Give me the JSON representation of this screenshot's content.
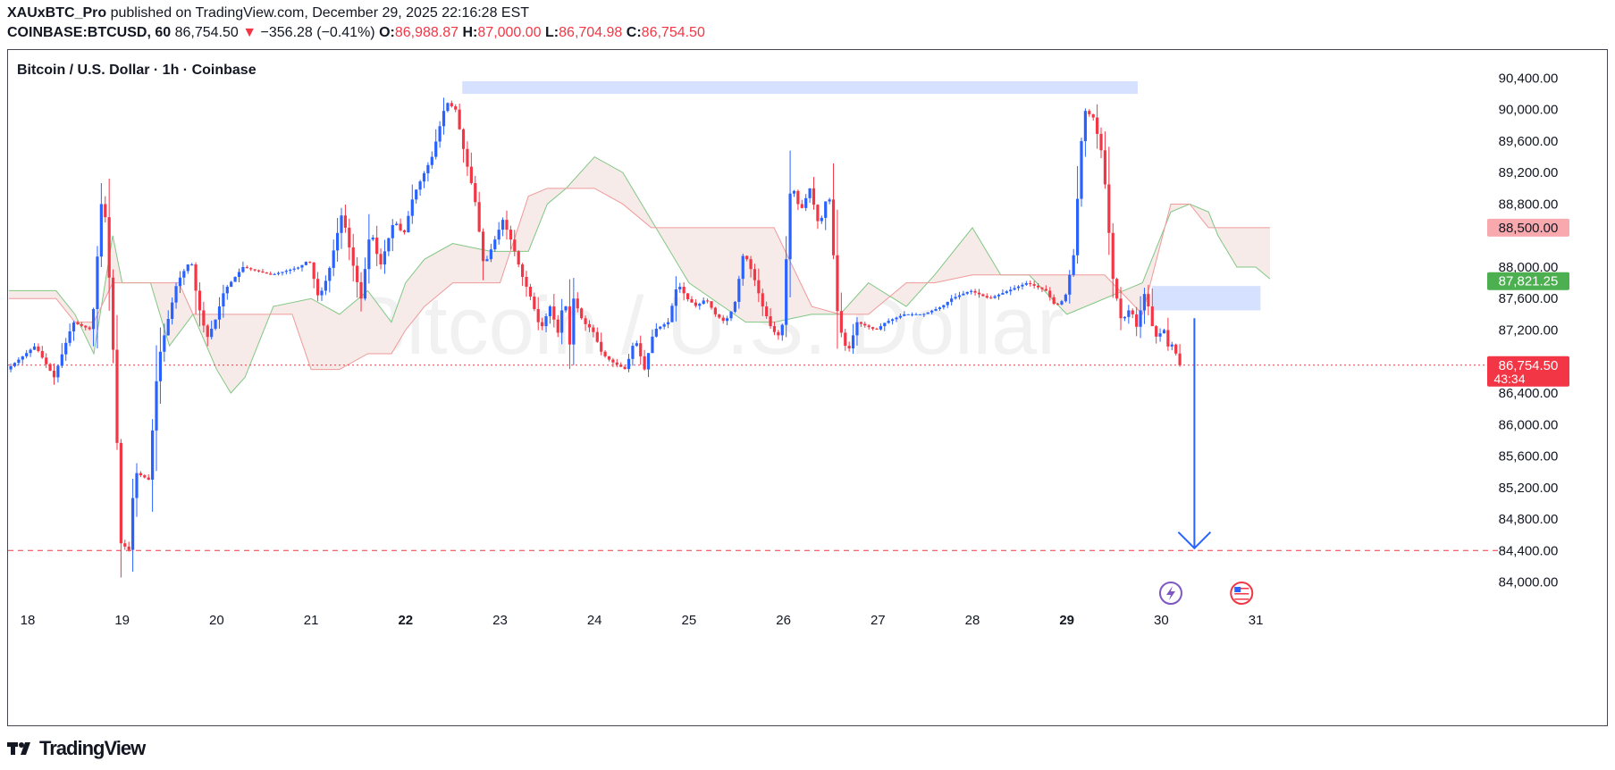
{
  "header": {
    "publisher": "XAUxBTC_Pro",
    "published_text": "published on TradingView.com, December 29, 2025 22:16:28 EST",
    "symbol": "COINBASE:BTCUSD, 60",
    "last": "86,754.50",
    "change_arrow": "▼",
    "change": "−356.28 (−0.41%)",
    "o_label": "O:",
    "o": "86,988.87",
    "h_label": "H:",
    "h": "87,000.00",
    "l_label": "L:",
    "l": "86,704.98",
    "c_label": "C:",
    "c": "86,754.50"
  },
  "chart_title": "Bitcoin / U.S. Dollar · 1h · Coinbase",
  "watermark": "Bitcoin / U.S. Dollar",
  "footer": {
    "brand": "TradingView",
    "logo_icon": "tradingview-logo-icon"
  },
  "colors": {
    "up": "#2962ff",
    "down": "#f23645",
    "cloud_green": "#4caf50",
    "cloud_red": "#f23645",
    "zone": "#cfdcff",
    "arrow": "#2962ff"
  },
  "chart_data": {
    "type": "candlestick",
    "title": "Bitcoin / U.S. Dollar · 1h · Coinbase",
    "xlabel": "",
    "ylabel": "",
    "ylim": [
      83700,
      90700
    ],
    "grid": false,
    "x_ticks": [
      {
        "label": "18",
        "day": 0,
        "bold": false
      },
      {
        "label": "19",
        "day": 1,
        "bold": false
      },
      {
        "label": "20",
        "day": 2,
        "bold": false
      },
      {
        "label": "21",
        "day": 3,
        "bold": false
      },
      {
        "label": "22",
        "day": 4,
        "bold": true
      },
      {
        "label": "23",
        "day": 5,
        "bold": false
      },
      {
        "label": "24",
        "day": 6,
        "bold": false
      },
      {
        "label": "25",
        "day": 7,
        "bold": false
      },
      {
        "label": "26",
        "day": 8,
        "bold": false
      },
      {
        "label": "27",
        "day": 9,
        "bold": false
      },
      {
        "label": "28",
        "day": 10,
        "bold": false
      },
      {
        "label": "29",
        "day": 11,
        "bold": true
      },
      {
        "label": "30",
        "day": 12,
        "bold": false
      },
      {
        "label": "31",
        "day": 13,
        "bold": false
      }
    ],
    "y_ticks": [
      {
        "value": 90400,
        "label": "90,400.00"
      },
      {
        "value": 90000,
        "label": "90,000.00"
      },
      {
        "value": 89600,
        "label": "89,600.00"
      },
      {
        "value": 89200,
        "label": "89,200.00"
      },
      {
        "value": 88800,
        "label": "88,800.00"
      },
      {
        "value": 88000,
        "label": "88,000.00"
      },
      {
        "value": 87600,
        "label": "87,600.00"
      },
      {
        "value": 87200,
        "label": "87,200.00"
      },
      {
        "value": 86400,
        "label": "86,400.00"
      },
      {
        "value": 86000,
        "label": "86,000.00"
      },
      {
        "value": 85600,
        "label": "85,600.00"
      },
      {
        "value": 85200,
        "label": "85,200.00"
      },
      {
        "value": 84800,
        "label": "84,800.00"
      },
      {
        "value": 84400,
        "label": "84,400.00"
      },
      {
        "value": 84000,
        "label": "84,000.00"
      }
    ],
    "price_tags": [
      {
        "value": 88500,
        "label": "88,500.00",
        "bg": "#f8a9ae",
        "fg": "#131722"
      },
      {
        "value": 87821.25,
        "label": "87,821.25",
        "bg": "#4caf50",
        "fg": "#ffffff"
      },
      {
        "value": 86754.5,
        "label": "86,754.50",
        "sub": "43:34",
        "bg": "#f23645",
        "fg": "#ffffff"
      }
    ],
    "price_path": [
      [
        -0.2,
        86700
      ],
      [
        -0.1,
        86800
      ],
      [
        0.1,
        87000
      ],
      [
        0.3,
        86600
      ],
      [
        0.5,
        87300
      ],
      [
        0.7,
        87200
      ],
      [
        0.8,
        88800
      ],
      [
        0.85,
        88600
      ],
      [
        0.95,
        86400
      ],
      [
        1.0,
        84500
      ],
      [
        1.1,
        84400
      ],
      [
        1.15,
        85400
      ],
      [
        1.3,
        85300
      ],
      [
        1.4,
        86800
      ],
      [
        1.6,
        87800
      ],
      [
        1.75,
        88100
      ],
      [
        1.8,
        87700
      ],
      [
        1.85,
        87400
      ],
      [
        1.92,
        87100
      ],
      [
        2.0,
        87300
      ],
      [
        2.1,
        87700
      ],
      [
        2.3,
        88000
      ],
      [
        2.6,
        87900
      ],
      [
        2.9,
        88000
      ],
      [
        3.0,
        88100
      ],
      [
        3.1,
        87600
      ],
      [
        3.2,
        87900
      ],
      [
        3.35,
        88700
      ],
      [
        3.45,
        88100
      ],
      [
        3.55,
        87600
      ],
      [
        3.65,
        88500
      ],
      [
        3.75,
        88000
      ],
      [
        3.9,
        88600
      ],
      [
        4.0,
        88400
      ],
      [
        4.1,
        88900
      ],
      [
        4.3,
        89400
      ],
      [
        4.45,
        90100
      ],
      [
        4.55,
        90000
      ],
      [
        4.65,
        89400
      ],
      [
        4.75,
        88900
      ],
      [
        4.85,
        88000
      ],
      [
        4.95,
        88300
      ],
      [
        5.05,
        88600
      ],
      [
        5.15,
        88300
      ],
      [
        5.25,
        87900
      ],
      [
        5.35,
        87600
      ],
      [
        5.45,
        87200
      ],
      [
        5.55,
        87500
      ],
      [
        5.65,
        87100
      ],
      [
        5.7,
        87800
      ],
      [
        5.75,
        86900
      ],
      [
        5.8,
        87600
      ],
      [
        5.9,
        87300
      ],
      [
        6.0,
        87200
      ],
      [
        6.1,
        86900
      ],
      [
        6.2,
        86800
      ],
      [
        6.35,
        86700
      ],
      [
        6.45,
        87100
      ],
      [
        6.55,
        86700
      ],
      [
        6.65,
        87200
      ],
      [
        6.8,
        87300
      ],
      [
        6.9,
        87800
      ],
      [
        7.0,
        87600
      ],
      [
        7.1,
        87500
      ],
      [
        7.2,
        87600
      ],
      [
        7.3,
        87400
      ],
      [
        7.4,
        87300
      ],
      [
        7.5,
        87500
      ],
      [
        7.6,
        88200
      ],
      [
        7.7,
        87900
      ],
      [
        7.8,
        87500
      ],
      [
        7.9,
        87200
      ],
      [
        8.0,
        87100
      ],
      [
        8.1,
        89100
      ],
      [
        8.2,
        88700
      ],
      [
        8.3,
        89000
      ],
      [
        8.4,
        88500
      ],
      [
        8.5,
        89000
      ],
      [
        8.6,
        87300
      ],
      [
        8.7,
        86900
      ],
      [
        8.8,
        87300
      ],
      [
        9.0,
        87200
      ],
      [
        9.1,
        87300
      ],
      [
        9.3,
        87400
      ],
      [
        9.5,
        87400
      ],
      [
        9.7,
        87500
      ],
      [
        9.8,
        87600
      ],
      [
        10.0,
        87700
      ],
      [
        10.2,
        87600
      ],
      [
        10.4,
        87700
      ],
      [
        10.6,
        87800
      ],
      [
        10.8,
        87700
      ],
      [
        10.9,
        87500
      ],
      [
        11.0,
        87600
      ],
      [
        11.1,
        88200
      ],
      [
        11.15,
        89200
      ],
      [
        11.2,
        90000
      ],
      [
        11.3,
        89900
      ],
      [
        11.4,
        89400
      ],
      [
        11.45,
        88700
      ],
      [
        11.5,
        87900
      ],
      [
        11.6,
        87300
      ],
      [
        11.7,
        87500
      ],
      [
        11.75,
        87200
      ],
      [
        11.85,
        87700
      ],
      [
        11.95,
        87100
      ],
      [
        12.05,
        87200
      ],
      [
        12.1,
        86950
      ],
      [
        12.15,
        87050
      ],
      [
        12.2,
        86754
      ]
    ],
    "kumo_green_line": [
      [
        -0.2,
        87700
      ],
      [
        0.3,
        87700
      ],
      [
        0.5,
        87400
      ],
      [
        0.7,
        86900
      ],
      [
        0.9,
        88400
      ],
      [
        1.0,
        87800
      ],
      [
        1.3,
        87800
      ],
      [
        1.5,
        87000
      ],
      [
        1.75,
        87400
      ],
      [
        2.0,
        86700
      ],
      [
        2.15,
        86400
      ],
      [
        2.3,
        86600
      ],
      [
        2.6,
        87500
      ],
      [
        3.0,
        87600
      ],
      [
        3.3,
        87400
      ],
      [
        3.6,
        87700
      ],
      [
        3.85,
        87300
      ],
      [
        4.0,
        87800
      ],
      [
        4.2,
        88100
      ],
      [
        4.5,
        88300
      ],
      [
        4.9,
        88200
      ],
      [
        5.3,
        88200
      ],
      [
        5.5,
        88800
      ],
      [
        5.7,
        89000
      ],
      [
        6.0,
        89400
      ],
      [
        6.3,
        89200
      ],
      [
        6.6,
        88600
      ],
      [
        7.0,
        87800
      ],
      [
        7.6,
        87300
      ],
      [
        7.9,
        87300
      ],
      [
        8.3,
        87400
      ],
      [
        8.6,
        87400
      ],
      [
        8.9,
        87800
      ],
      [
        9.3,
        87500
      ],
      [
        9.6,
        87900
      ],
      [
        10.0,
        88500
      ],
      [
        10.3,
        87900
      ],
      [
        10.6,
        87900
      ],
      [
        11.0,
        87400
      ],
      [
        11.4,
        87600
      ],
      [
        11.8,
        87800
      ],
      [
        12.1,
        88700
      ],
      [
        12.3,
        88800
      ],
      [
        12.5,
        88700
      ],
      [
        12.6,
        88400
      ],
      [
        12.8,
        88000
      ],
      [
        13.0,
        88000
      ],
      [
        13.15,
        87850
      ]
    ],
    "kumo_red_line": [
      [
        -0.2,
        87600
      ],
      [
        0.3,
        87600
      ],
      [
        0.5,
        87300
      ],
      [
        0.7,
        87300
      ],
      [
        0.9,
        87800
      ],
      [
        1.3,
        87800
      ],
      [
        1.6,
        87800
      ],
      [
        1.75,
        87400
      ],
      [
        1.9,
        87400
      ],
      [
        2.3,
        87400
      ],
      [
        2.6,
        87400
      ],
      [
        2.8,
        87400
      ],
      [
        3.0,
        86700
      ],
      [
        3.3,
        86700
      ],
      [
        3.6,
        86900
      ],
      [
        3.85,
        86900
      ],
      [
        4.0,
        87200
      ],
      [
        4.2,
        87500
      ],
      [
        4.5,
        87800
      ],
      [
        5.0,
        87800
      ],
      [
        5.3,
        88900
      ],
      [
        5.5,
        89000
      ],
      [
        6.0,
        89000
      ],
      [
        6.3,
        88800
      ],
      [
        6.6,
        88500
      ],
      [
        7.0,
        88500
      ],
      [
        7.6,
        88500
      ],
      [
        7.9,
        88500
      ],
      [
        8.3,
        87500
      ],
      [
        8.6,
        87400
      ],
      [
        8.9,
        87400
      ],
      [
        9.3,
        87800
      ],
      [
        9.6,
        87800
      ],
      [
        10.0,
        87900
      ],
      [
        10.3,
        87900
      ],
      [
        10.6,
        87900
      ],
      [
        11.0,
        87900
      ],
      [
        11.4,
        87900
      ],
      [
        11.8,
        87400
      ],
      [
        12.1,
        88800
      ],
      [
        12.3,
        88800
      ],
      [
        12.5,
        88500
      ],
      [
        12.8,
        88500
      ],
      [
        13.0,
        88500
      ],
      [
        13.15,
        88500
      ]
    ],
    "zones": [
      {
        "x0": 4.6,
        "x1": 11.75,
        "y0": 90200,
        "y1": 90360,
        "fill": "#cfdcff"
      },
      {
        "x0": 11.9,
        "x1": 13.05,
        "y0": 87450,
        "y1": 87760,
        "fill": "#cfdcff"
      }
    ],
    "hlines": [
      {
        "value": 86754.5,
        "color": "#f23645",
        "style": "dotted"
      },
      {
        "value": 84400,
        "color": "#f23645",
        "style": "dashed"
      }
    ],
    "arrow": {
      "x": 12.35,
      "y_from": 87350,
      "y_to": 84430
    },
    "event_icons": [
      {
        "name": "earnings-bolt-icon",
        "day": 12.1
      },
      {
        "name": "us-flag-event-icon",
        "day": 12.85
      }
    ]
  }
}
